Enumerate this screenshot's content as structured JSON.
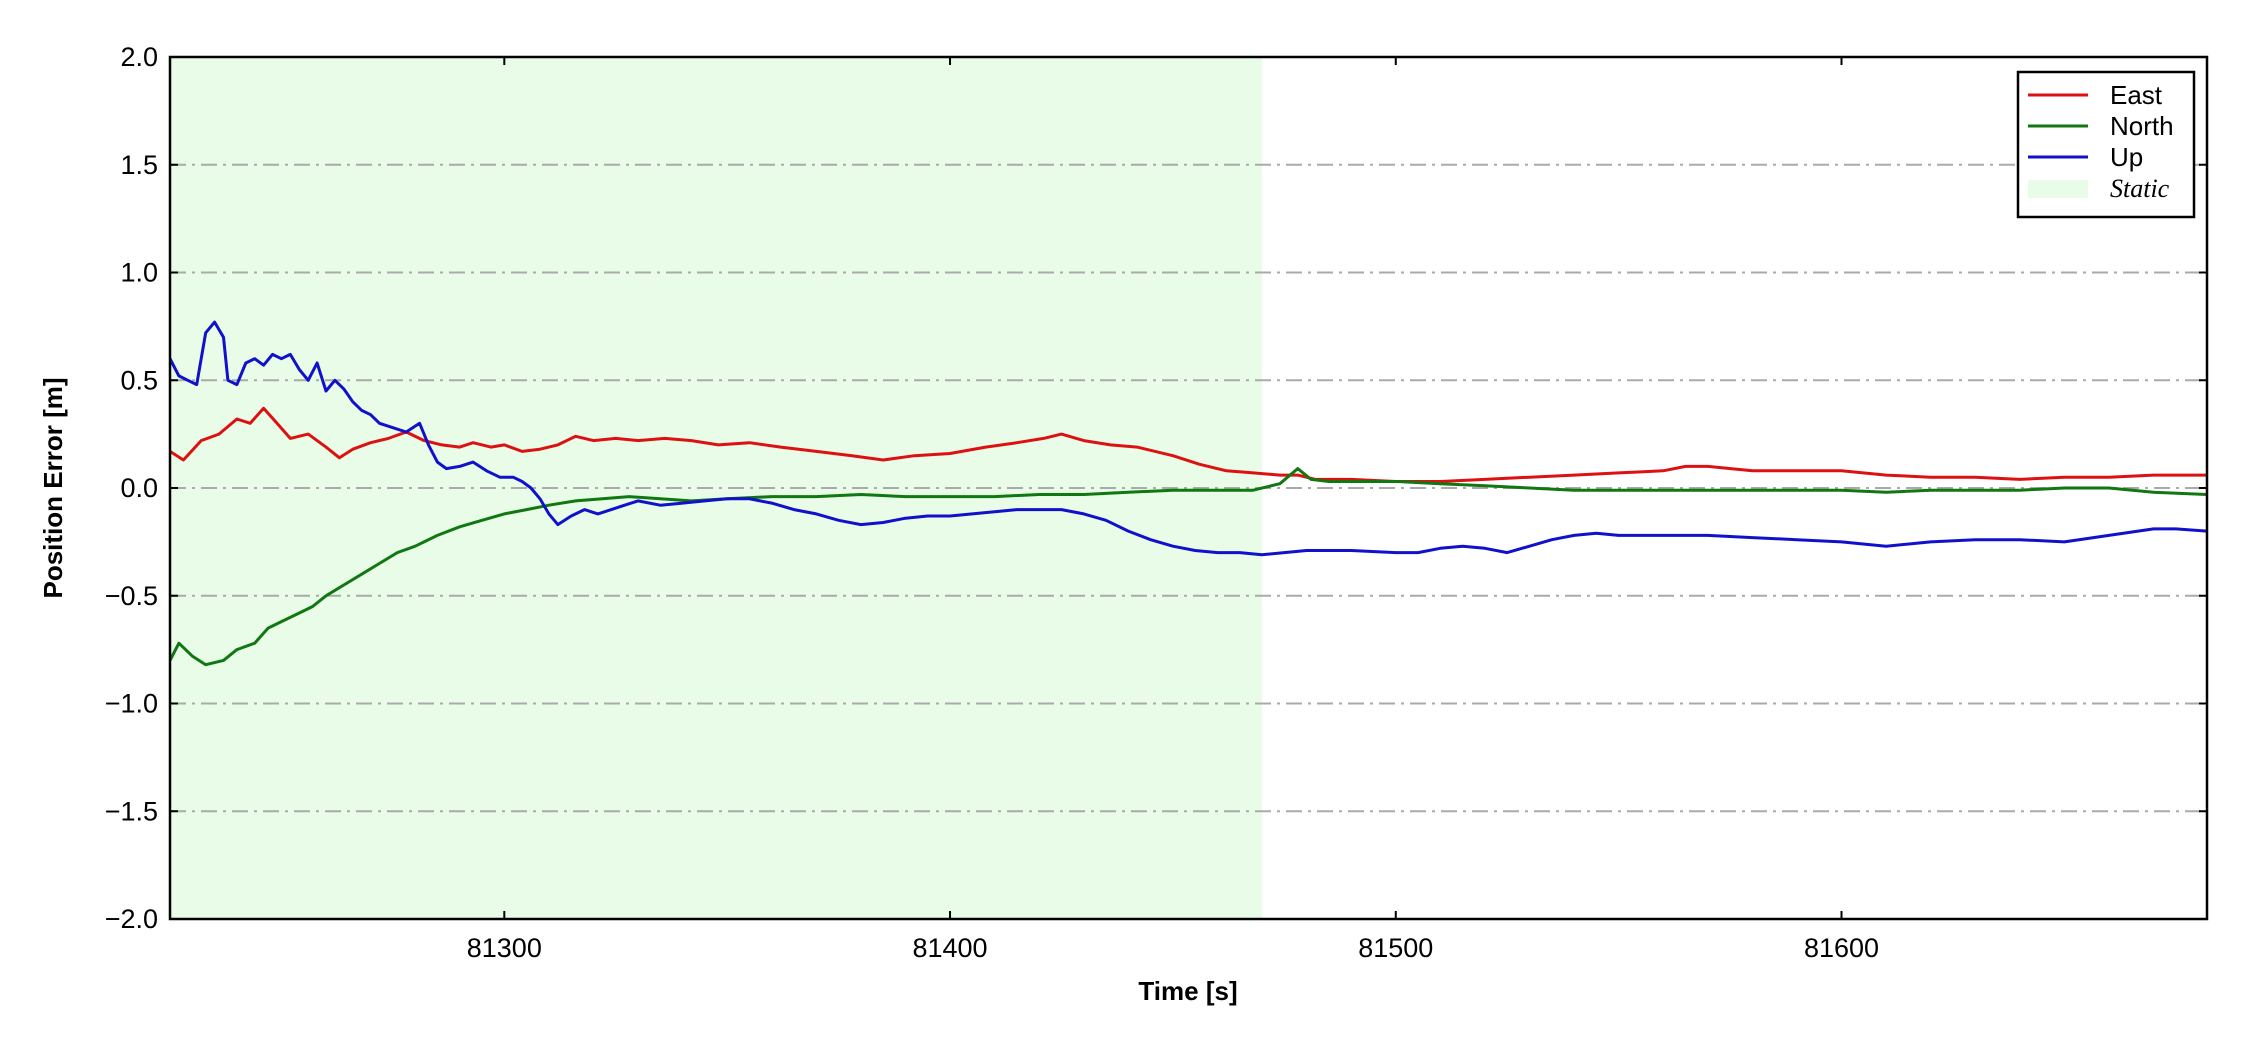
{
  "chart_data": {
    "type": "line",
    "title": "",
    "xlabel": "Time [s]",
    "ylabel": "Position Error [m]",
    "xlim": [
      81225,
      81682
    ],
    "ylim": [
      -2.0,
      2.0
    ],
    "x_ticks": [
      81300,
      81400,
      81500,
      81600
    ],
    "x_tick_labels": [
      "81300",
      "81400",
      "81500",
      "81600"
    ],
    "y_ticks": [
      2.0,
      1.5,
      1.0,
      0.5,
      0.0,
      -0.5,
      -1.0,
      -1.5,
      -2.0
    ],
    "y_tick_labels": [
      "2.0",
      "1.5",
      "1.0",
      "0.5",
      "0.0",
      "−0.5",
      "−1.0",
      "−1.5",
      "−2.0"
    ],
    "grid": "horizontal dash-dot",
    "legend_position": "top-right",
    "shaded_region": {
      "label": "Static",
      "x_start": 81225,
      "x_end": 81470,
      "color": "#e8fce8"
    },
    "series": [
      {
        "name": "East",
        "color": "#dd1111",
        "points": [
          [
            81225,
            0.17
          ],
          [
            81228,
            0.13
          ],
          [
            81232,
            0.22
          ],
          [
            81236,
            0.25
          ],
          [
            81240,
            0.32
          ],
          [
            81243,
            0.3
          ],
          [
            81246,
            0.37
          ],
          [
            81249,
            0.3
          ],
          [
            81252,
            0.23
          ],
          [
            81256,
            0.25
          ],
          [
            81260,
            0.19
          ],
          [
            81263,
            0.14
          ],
          [
            81266,
            0.18
          ],
          [
            81270,
            0.21
          ],
          [
            81274,
            0.23
          ],
          [
            81278,
            0.26
          ],
          [
            81282,
            0.22
          ],
          [
            81286,
            0.2
          ],
          [
            81290,
            0.19
          ],
          [
            81293,
            0.21
          ],
          [
            81297,
            0.19
          ],
          [
            81300,
            0.2
          ],
          [
            81304,
            0.17
          ],
          [
            81308,
            0.18
          ],
          [
            81312,
            0.2
          ],
          [
            81316,
            0.24
          ],
          [
            81320,
            0.22
          ],
          [
            81325,
            0.23
          ],
          [
            81330,
            0.22
          ],
          [
            81336,
            0.23
          ],
          [
            81342,
            0.22
          ],
          [
            81348,
            0.2
          ],
          [
            81355,
            0.21
          ],
          [
            81362,
            0.19
          ],
          [
            81370,
            0.17
          ],
          [
            81378,
            0.15
          ],
          [
            81385,
            0.13
          ],
          [
            81392,
            0.15
          ],
          [
            81400,
            0.16
          ],
          [
            81408,
            0.19
          ],
          [
            81415,
            0.21
          ],
          [
            81421,
            0.23
          ],
          [
            81425,
            0.25
          ],
          [
            81430,
            0.22
          ],
          [
            81436,
            0.2
          ],
          [
            81442,
            0.19
          ],
          [
            81450,
            0.15
          ],
          [
            81456,
            0.11
          ],
          [
            81462,
            0.08
          ],
          [
            81468,
            0.07
          ],
          [
            81474,
            0.06
          ],
          [
            81478,
            0.06
          ],
          [
            81482,
            0.04
          ],
          [
            81490,
            0.04
          ],
          [
            81500,
            0.03
          ],
          [
            81510,
            0.03
          ],
          [
            81520,
            0.04
          ],
          [
            81530,
            0.05
          ],
          [
            81540,
            0.06
          ],
          [
            81550,
            0.07
          ],
          [
            81560,
            0.08
          ],
          [
            81565,
            0.1
          ],
          [
            81570,
            0.1
          ],
          [
            81580,
            0.08
          ],
          [
            81590,
            0.08
          ],
          [
            81600,
            0.08
          ],
          [
            81610,
            0.06
          ],
          [
            81620,
            0.05
          ],
          [
            81630,
            0.05
          ],
          [
            81640,
            0.04
          ],
          [
            81650,
            0.05
          ],
          [
            81660,
            0.05
          ],
          [
            81670,
            0.06
          ],
          [
            81682,
            0.06
          ]
        ]
      },
      {
        "name": "North",
        "color": "#117711",
        "points": [
          [
            81225,
            -0.8
          ],
          [
            81227,
            -0.72
          ],
          [
            81230,
            -0.78
          ],
          [
            81233,
            -0.82
          ],
          [
            81237,
            -0.8
          ],
          [
            81240,
            -0.75
          ],
          [
            81244,
            -0.72
          ],
          [
            81247,
            -0.65
          ],
          [
            81250,
            -0.62
          ],
          [
            81254,
            -0.58
          ],
          [
            81257,
            -0.55
          ],
          [
            81260,
            -0.5
          ],
          [
            81264,
            -0.45
          ],
          [
            81268,
            -0.4
          ],
          [
            81272,
            -0.35
          ],
          [
            81276,
            -0.3
          ],
          [
            81280,
            -0.27
          ],
          [
            81285,
            -0.22
          ],
          [
            81290,
            -0.18
          ],
          [
            81295,
            -0.15
          ],
          [
            81300,
            -0.12
          ],
          [
            81305,
            -0.1
          ],
          [
            81310,
            -0.08
          ],
          [
            81316,
            -0.06
          ],
          [
            81322,
            -0.05
          ],
          [
            81328,
            -0.04
          ],
          [
            81335,
            -0.05
          ],
          [
            81342,
            -0.06
          ],
          [
            81350,
            -0.05
          ],
          [
            81360,
            -0.04
          ],
          [
            81370,
            -0.04
          ],
          [
            81380,
            -0.03
          ],
          [
            81390,
            -0.04
          ],
          [
            81400,
            -0.04
          ],
          [
            81410,
            -0.04
          ],
          [
            81420,
            -0.03
          ],
          [
            81430,
            -0.03
          ],
          [
            81440,
            -0.02
          ],
          [
            81450,
            -0.01
          ],
          [
            81460,
            -0.01
          ],
          [
            81468,
            -0.01
          ],
          [
            81474,
            0.02
          ],
          [
            81478,
            0.09
          ],
          [
            81481,
            0.04
          ],
          [
            81485,
            0.03
          ],
          [
            81490,
            0.03
          ],
          [
            81500,
            0.03
          ],
          [
            81510,
            0.02
          ],
          [
            81520,
            0.01
          ],
          [
            81530,
            0.0
          ],
          [
            81540,
            -0.01
          ],
          [
            81550,
            -0.01
          ],
          [
            81560,
            -0.01
          ],
          [
            81570,
            -0.01
          ],
          [
            81580,
            -0.01
          ],
          [
            81590,
            -0.01
          ],
          [
            81600,
            -0.01
          ],
          [
            81610,
            -0.02
          ],
          [
            81620,
            -0.01
          ],
          [
            81630,
            -0.01
          ],
          [
            81640,
            -0.01
          ],
          [
            81650,
            0.0
          ],
          [
            81660,
            0.0
          ],
          [
            81670,
            -0.02
          ],
          [
            81682,
            -0.03
          ]
        ]
      },
      {
        "name": "Up",
        "color": "#1111cc",
        "points": [
          [
            81225,
            0.6
          ],
          [
            81227,
            0.52
          ],
          [
            81229,
            0.5
          ],
          [
            81231,
            0.48
          ],
          [
            81233,
            0.72
          ],
          [
            81235,
            0.77
          ],
          [
            81237,
            0.7
          ],
          [
            81238,
            0.5
          ],
          [
            81240,
            0.48
          ],
          [
            81242,
            0.58
          ],
          [
            81244,
            0.6
          ],
          [
            81246,
            0.57
          ],
          [
            81248,
            0.62
          ],
          [
            81250,
            0.6
          ],
          [
            81252,
            0.62
          ],
          [
            81254,
            0.55
          ],
          [
            81256,
            0.5
          ],
          [
            81258,
            0.58
          ],
          [
            81260,
            0.45
          ],
          [
            81262,
            0.5
          ],
          [
            81264,
            0.46
          ],
          [
            81266,
            0.4
          ],
          [
            81268,
            0.36
          ],
          [
            81270,
            0.34
          ],
          [
            81272,
            0.3
          ],
          [
            81275,
            0.28
          ],
          [
            81278,
            0.26
          ],
          [
            81281,
            0.3
          ],
          [
            81283,
            0.2
          ],
          [
            81285,
            0.12
          ],
          [
            81287,
            0.09
          ],
          [
            81290,
            0.1
          ],
          [
            81293,
            0.12
          ],
          [
            81296,
            0.08
          ],
          [
            81299,
            0.05
          ],
          [
            81302,
            0.05
          ],
          [
            81304,
            0.03
          ],
          [
            81306,
            0.0
          ],
          [
            81308,
            -0.05
          ],
          [
            81310,
            -0.12
          ],
          [
            81312,
            -0.17
          ],
          [
            81315,
            -0.13
          ],
          [
            81318,
            -0.1
          ],
          [
            81321,
            -0.12
          ],
          [
            81324,
            -0.1
          ],
          [
            81327,
            -0.08
          ],
          [
            81330,
            -0.06
          ],
          [
            81335,
            -0.08
          ],
          [
            81340,
            -0.07
          ],
          [
            81345,
            -0.06
          ],
          [
            81350,
            -0.05
          ],
          [
            81355,
            -0.05
          ],
          [
            81360,
            -0.07
          ],
          [
            81365,
            -0.1
          ],
          [
            81370,
            -0.12
          ],
          [
            81375,
            -0.15
          ],
          [
            81380,
            -0.17
          ],
          [
            81385,
            -0.16
          ],
          [
            81390,
            -0.14
          ],
          [
            81395,
            -0.13
          ],
          [
            81400,
            -0.13
          ],
          [
            81405,
            -0.12
          ],
          [
            81410,
            -0.11
          ],
          [
            81415,
            -0.1
          ],
          [
            81420,
            -0.1
          ],
          [
            81425,
            -0.1
          ],
          [
            81430,
            -0.12
          ],
          [
            81435,
            -0.15
          ],
          [
            81440,
            -0.2
          ],
          [
            81445,
            -0.24
          ],
          [
            81450,
            -0.27
          ],
          [
            81455,
            -0.29
          ],
          [
            81460,
            -0.3
          ],
          [
            81465,
            -0.3
          ],
          [
            81470,
            -0.31
          ],
          [
            81475,
            -0.3
          ],
          [
            81480,
            -0.29
          ],
          [
            81490,
            -0.29
          ],
          [
            81500,
            -0.3
          ],
          [
            81505,
            -0.3
          ],
          [
            81510,
            -0.28
          ],
          [
            81515,
            -0.27
          ],
          [
            81520,
            -0.28
          ],
          [
            81525,
            -0.3
          ],
          [
            81530,
            -0.27
          ],
          [
            81535,
            -0.24
          ],
          [
            81540,
            -0.22
          ],
          [
            81545,
            -0.21
          ],
          [
            81550,
            -0.22
          ],
          [
            81560,
            -0.22
          ],
          [
            81570,
            -0.22
          ],
          [
            81580,
            -0.23
          ],
          [
            81590,
            -0.24
          ],
          [
            81600,
            -0.25
          ],
          [
            81610,
            -0.27
          ],
          [
            81620,
            -0.25
          ],
          [
            81630,
            -0.24
          ],
          [
            81640,
            -0.24
          ],
          [
            81650,
            -0.25
          ],
          [
            81660,
            -0.22
          ],
          [
            81670,
            -0.19
          ],
          [
            81675,
            -0.19
          ],
          [
            81682,
            -0.2
          ]
        ]
      }
    ]
  }
}
